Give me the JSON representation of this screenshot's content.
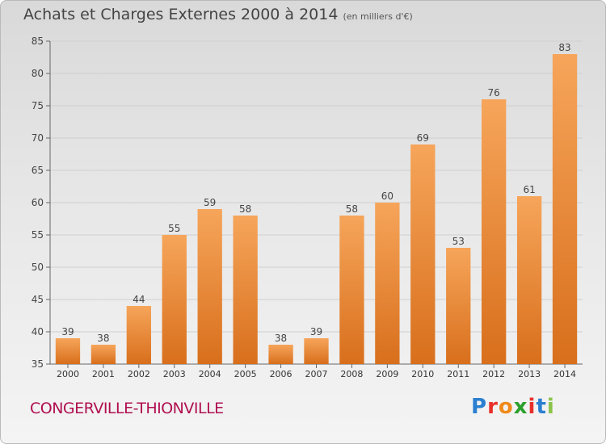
{
  "header": {
    "title": "Achats et Charges Externes 2000 à 2014",
    "unit": "(en milliers d'€)"
  },
  "footer": {
    "place": "CONGERVILLE-THIONVILLE",
    "logo": [
      "P",
      "r",
      "o",
      "x",
      "i",
      "t",
      "i"
    ],
    "logo_colors": [
      "#2a7fd0",
      "#e8302a",
      "#f08a1a",
      "#2ca02c",
      "#e8302a",
      "#2a7fd0",
      "#8bc34a"
    ]
  },
  "colors": {
    "bar_top": "#f6a55a",
    "bar_bottom": "#d86f1c",
    "grid": "#cfcfcf"
  },
  "chart_data": {
    "type": "bar",
    "title": "Achats et Charges Externes 2000 à 2014",
    "subtitle": "(en milliers d'€)",
    "categories": [
      "2000",
      "2001",
      "2002",
      "2003",
      "2004",
      "2005",
      "2006",
      "2007",
      "2008",
      "2009",
      "2010",
      "2011",
      "2012",
      "2013",
      "2014"
    ],
    "values": [
      39,
      38,
      44,
      55,
      59,
      58,
      38,
      39,
      58,
      60,
      69,
      53,
      76,
      61,
      83
    ],
    "ylim": [
      35,
      85
    ],
    "yticks": [
      35,
      40,
      45,
      50,
      55,
      60,
      65,
      70,
      75,
      80,
      85
    ],
    "grid": true,
    "data_labels": true
  }
}
